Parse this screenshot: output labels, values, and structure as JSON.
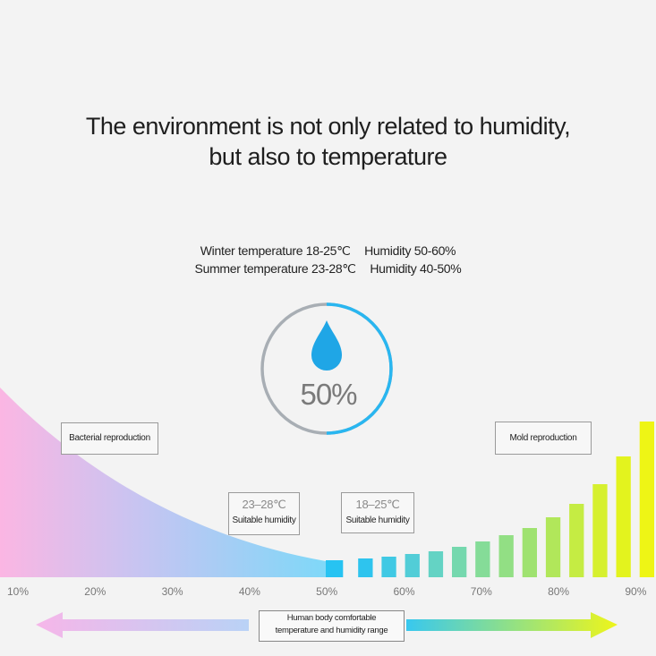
{
  "heading": {
    "line1": "The environment is not only related to humidity,",
    "line2": "but also to temperature"
  },
  "seasons": [
    {
      "temperature": "Winter temperature 18-25℃",
      "humidity": "Humidity 50-60%"
    },
    {
      "temperature": "Summer temperature 23-28℃",
      "humidity": "Humidity 40-50%"
    }
  ],
  "gauge": {
    "value_label": "50%",
    "value": 0.5,
    "icon": "water-drop-icon",
    "accent": "#29b6f0",
    "track": "#a8aeb4"
  },
  "zones": {
    "left": "Bacterial reproduction",
    "right": "Mold reproduction",
    "summer_range": "23–28℃",
    "summer_label": "Suitable humidity",
    "winter_range": "18–25℃",
    "winter_label": "Suitable humidity"
  },
  "axis_ticks": [
    "10%",
    "20%",
    "30%",
    "40%",
    "50%",
    "60%",
    "70%",
    "80%",
    "90%"
  ],
  "comfort_range": {
    "line1": "Human body comfortable",
    "line2": "temperature and humidity range"
  },
  "colors": {
    "pink": "#f9b8e6",
    "blue": "#7fd7f7",
    "cyan": "#2ec3f3",
    "green": "#8ee07c",
    "yellow": "#ecf515"
  }
}
